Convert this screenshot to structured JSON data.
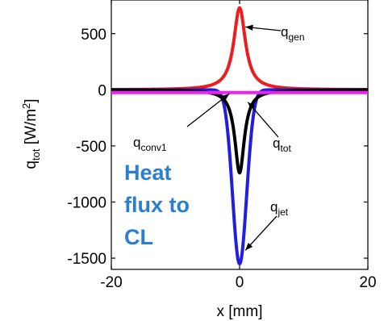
{
  "chart_data": {
    "type": "line",
    "title": "",
    "xlabel": "x [mm]",
    "ylabel": {
      "main": "q",
      "sub": "tot",
      "unit_pre": " [W/m",
      "unit_sup": "2",
      "unit_post": "]"
    },
    "xlim": [
      -20,
      20
    ],
    "ylim": [
      -1600,
      800
    ],
    "x_ticks": [
      -20,
      0,
      20
    ],
    "x_tick_labels": [
      "-20",
      "0",
      "20"
    ],
    "y_ticks": [
      500,
      0,
      -500,
      -1000,
      -1500
    ],
    "y_tick_labels": [
      "500",
      "0",
      "-500",
      "-1000",
      "-1500"
    ],
    "grid": false,
    "series": [
      {
        "name": "q_gen",
        "color": "#ee1c1c",
        "profile": "lorentzian",
        "peak": 730,
        "width": 1.1,
        "base": 0
      },
      {
        "name": "q_jet",
        "color": "#1f1fdd",
        "profile": "gaussian",
        "peak": -1550,
        "width": 1.1,
        "base": 0
      },
      {
        "name": "q_tot",
        "color": "#000000",
        "profile": "lorentzian",
        "peak": -740,
        "width": 0.9,
        "base": 0
      },
      {
        "name": "q_conv1",
        "color": "#ee22ee",
        "profile": "flat",
        "peak": 0,
        "width": 1,
        "base": -25
      }
    ],
    "annotations": [
      {
        "main": "q",
        "sub": "gen",
        "points_to": [
          0.9,
          560
        ]
      },
      {
        "main": "q",
        "sub": "conv1",
        "points_to": [
          -1.6,
          -35
        ]
      },
      {
        "main": "q",
        "sub": "tot",
        "points_to": [
          1.3,
          -110
        ]
      },
      {
        "main": "q",
        "sub": "jet",
        "points_to": [
          0.9,
          -1430
        ]
      }
    ],
    "callout": {
      "lines": [
        "Heat",
        "flux to",
        "CL"
      ],
      "color": "#2a7fd0"
    }
  }
}
